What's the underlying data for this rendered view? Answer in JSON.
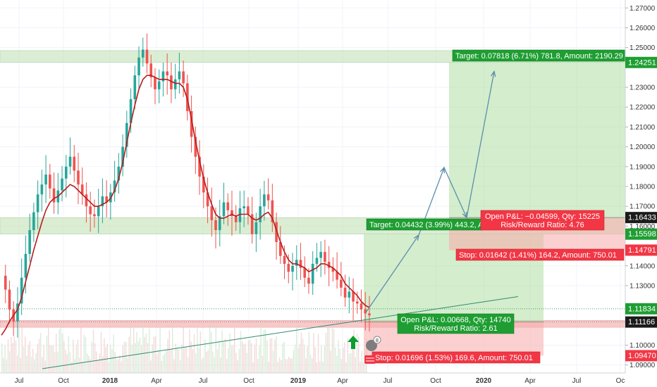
{
  "chart_data": {
    "type": "candlestick",
    "symbol_pair_context": "price chart with moving average",
    "x_axis_ticks": [
      "Jul",
      "Oct",
      "2018",
      "Apr",
      "Jul",
      "Oct",
      "2019",
      "Apr",
      "Jul",
      "Oct",
      "2020",
      "Apr",
      "Jul",
      "Oc"
    ],
    "y_axis_ticks": [
      "1.27000",
      "1.26000",
      "1.25000",
      "1.23000",
      "1.22000",
      "1.21000",
      "1.20000",
      "1.19000",
      "1.18000",
      "1.17000",
      "1.16000",
      "1.14000",
      "1.13000",
      "1.10000",
      "1.09000"
    ],
    "ylim": [
      1.086,
      1.274
    ],
    "price_tags": [
      {
        "value": "1.24251",
        "color": "#1e9e32"
      },
      {
        "value": "1.16433",
        "color": "#1b1b1b"
      },
      {
        "value": "1.15598",
        "color": "#1e9e32"
      },
      {
        "value": "1.14791",
        "color": "#f23645"
      },
      {
        "value": "1.11834",
        "color": "#1e9e32"
      },
      {
        "value": "1.11166",
        "color": "#1b1b1b"
      },
      {
        "value": "1.09470",
        "color": "#f23645"
      }
    ],
    "zones": [
      {
        "name": "upper-resistance-zone",
        "from": 1.2425,
        "to": 1.2485,
        "color": "#cfe8c4"
      },
      {
        "name": "mid-resistance-zone",
        "from": 1.156,
        "to": 1.1643,
        "color": "#cfe8c4"
      },
      {
        "name": "support-zone",
        "from": 1.109,
        "to": 1.1125,
        "color": "#f5b7b7"
      }
    ],
    "positions": [
      {
        "name": "long-position-1",
        "entry": 1.11166,
        "target": 1.15598,
        "stop": 1.0947,
        "target_label": "Target: 0.04432 (3.99%) 443.2, Amo",
        "stop_label": "Stop: 0.01696 (1.53%) 169.6, Amount: 750.01",
        "open_pl_label": "Open P&L: 0.00668, Qty: 14740",
        "rr_label": "Risk/Reward Ratio: 2.61"
      },
      {
        "name": "long-position-2",
        "entry": 1.16433,
        "target": 1.24251,
        "stop": 1.14791,
        "target_label": "Target: 0.07818 (6.71%) 781.8, Amount: 2190.29",
        "stop_label": "Stop: 0.01642 (1.41%) 164.2, Amount: 750.01",
        "open_pl_label": "Open P&L: −0.04599, Qty: 15225",
        "rr_label": "Risk/Reward Ratio: 4.76"
      }
    ],
    "close_series": [
      1.135,
      1.128,
      1.118,
      1.112,
      1.121,
      1.134,
      1.146,
      1.158,
      1.167,
      1.176,
      1.181,
      1.186,
      1.179,
      1.172,
      1.178,
      1.184,
      1.19,
      1.195,
      1.188,
      1.181,
      1.176,
      1.17,
      1.166,
      1.165,
      1.17,
      1.175,
      1.172,
      1.177,
      1.183,
      1.19,
      1.2,
      1.212,
      1.224,
      1.236,
      1.245,
      1.249,
      1.242,
      1.235,
      1.229,
      1.233,
      1.238,
      1.236,
      1.229,
      1.234,
      1.238,
      1.232,
      1.218,
      1.205,
      1.195,
      1.185,
      1.177,
      1.17,
      1.163,
      1.158,
      1.165,
      1.172,
      1.168,
      1.165,
      1.162,
      1.169,
      1.17,
      1.166,
      1.156,
      1.162,
      1.17,
      1.176,
      1.173,
      1.162,
      1.152,
      1.145,
      1.141,
      1.137,
      1.14,
      1.143,
      1.139,
      1.134,
      1.131,
      1.141,
      1.144,
      1.147,
      1.142,
      1.139,
      1.137,
      1.133,
      1.129,
      1.124,
      1.127,
      1.122,
      1.121,
      1.118,
      1.116,
      1.115
    ],
    "ma_series": [
      1.105,
      1.108,
      1.112,
      1.115,
      1.118,
      1.124,
      1.132,
      1.14,
      1.148,
      1.155,
      1.162,
      1.168,
      1.172,
      1.174,
      1.175,
      1.177,
      1.179,
      1.181,
      1.18,
      1.178,
      1.176,
      1.174,
      1.172,
      1.17,
      1.17,
      1.171,
      1.172,
      1.174,
      1.178,
      1.184,
      1.192,
      1.202,
      1.212,
      1.221,
      1.229,
      1.234,
      1.236,
      1.236,
      1.235,
      1.234,
      1.234,
      1.234,
      1.233,
      1.232,
      1.232,
      1.23,
      1.224,
      1.214,
      1.203,
      1.193,
      1.184,
      1.177,
      1.171,
      1.166,
      1.164,
      1.164,
      1.165,
      1.166,
      1.165,
      1.166,
      1.166,
      1.166,
      1.164,
      1.163,
      1.164,
      1.166,
      1.167,
      1.164,
      1.158,
      1.152,
      1.147,
      1.143,
      1.141,
      1.141,
      1.14,
      1.139,
      1.137,
      1.138,
      1.139,
      1.141,
      1.141,
      1.14,
      1.139,
      1.137,
      1.135,
      1.131,
      1.129,
      1.127,
      1.125,
      1.122,
      1.12,
      1.119
    ]
  }
}
